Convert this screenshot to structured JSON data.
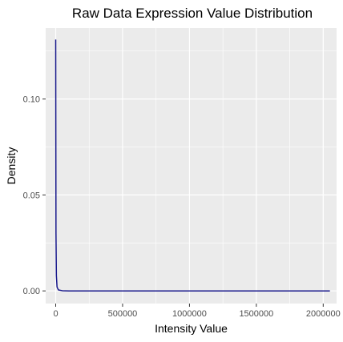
{
  "chart_data": {
    "type": "line",
    "title": "Raw Data Expression Value Distribution",
    "xlabel": "Intensity Value",
    "ylabel": "Density",
    "xlim": [
      -75000,
      2100000
    ],
    "ylim": [
      -0.0066,
      0.137
    ],
    "x_ticks": [
      0,
      500000,
      1000000,
      1500000,
      2000000
    ],
    "x_tick_labels": [
      "0",
      "500000",
      "1000000",
      "1500000",
      "2000000"
    ],
    "y_ticks": [
      0.0,
      0.05,
      0.1
    ],
    "y_tick_labels": [
      "0.00",
      "0.05",
      "0.10"
    ],
    "grid": true,
    "background": "#ebebeb",
    "grid_color": "#ffffff",
    "series": [
      {
        "color": "#1a1a8c",
        "x": [
          0,
          1000,
          2000,
          5000,
          10000,
          20000,
          50000,
          100000,
          500000,
          1000000,
          1500000,
          2050000
        ],
        "y": [
          0.131,
          0.08,
          0.03,
          0.008,
          0.002,
          0.0005,
          0.0001,
          0.0,
          0.0,
          0.0,
          0.0,
          0.0
        ]
      }
    ]
  }
}
